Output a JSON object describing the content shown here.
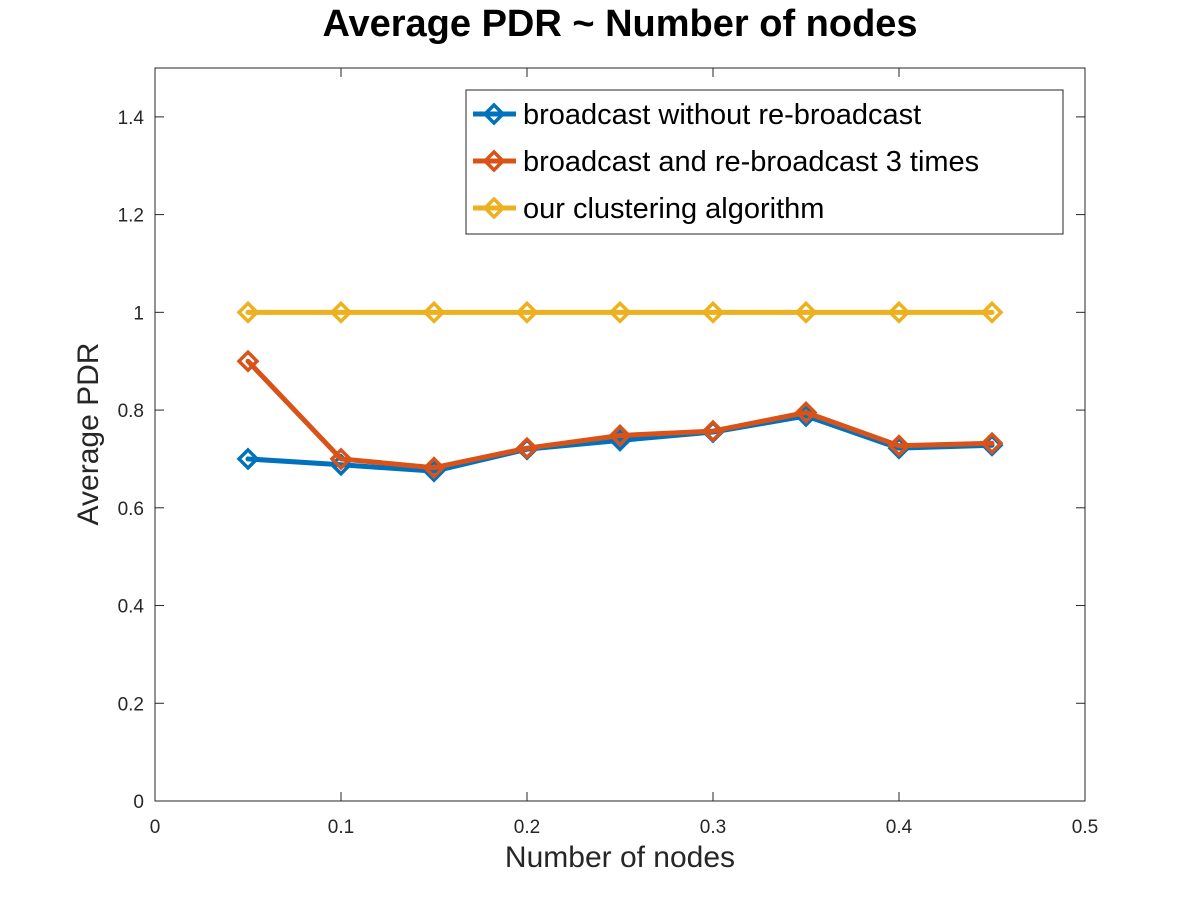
{
  "chart_data": {
    "type": "line",
    "title": "Average PDR ~ Number of nodes",
    "xlabel": "Number of nodes",
    "ylabel": "Average PDR",
    "xlim": [
      0,
      0.5
    ],
    "ylim": [
      0,
      1.5
    ],
    "x_ticks": [
      0,
      0.1,
      0.2,
      0.3,
      0.4,
      0.5
    ],
    "y_ticks": [
      0,
      0.2,
      0.4,
      0.6,
      0.8,
      1,
      1.2,
      1.4
    ],
    "grid": false,
    "legend_position": "top-right",
    "marker": "diamond",
    "x": [
      0.05,
      0.1,
      0.15,
      0.2,
      0.25,
      0.3,
      0.35,
      0.4,
      0.45
    ],
    "series": [
      {
        "name": "broadcast without re-broadcast",
        "color": "#0072BD",
        "values": [
          0.7,
          0.688,
          0.675,
          0.72,
          0.738,
          0.755,
          0.788,
          0.722,
          0.728
        ]
      },
      {
        "name": "broadcast and re-broadcast 3 times",
        "color": "#D95319",
        "values": [
          0.9,
          0.7,
          0.682,
          0.722,
          0.748,
          0.757,
          0.795,
          0.727,
          0.732
        ]
      },
      {
        "name": "our clustering algorithm",
        "color": "#EDB120",
        "values": [
          1,
          1,
          1,
          1,
          1,
          1,
          1,
          1,
          1
        ]
      }
    ]
  }
}
